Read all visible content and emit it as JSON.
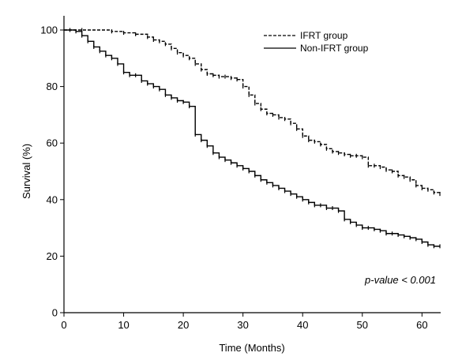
{
  "chart_data": {
    "type": "line",
    "title": "",
    "xlabel": "Time (Months)",
    "ylabel": "Survival (%)",
    "xlim": [
      0,
      63
    ],
    "ylim": [
      0,
      100
    ],
    "x_ticks": [
      0,
      10,
      20,
      30,
      40,
      50,
      60
    ],
    "y_ticks": [
      0,
      20,
      40,
      60,
      80,
      100
    ],
    "grid": false,
    "legend_position": "top-right",
    "annotation": "p-value < 0.001",
    "series": [
      {
        "name": "IFRT group",
        "style": "dashed",
        "color": "#000000",
        "x": [
          0,
          3,
          8,
          10,
          12,
          14,
          15,
          16,
          17,
          18,
          19,
          20,
          21,
          22,
          23,
          24,
          25,
          26,
          27,
          28,
          29,
          30,
          31,
          32,
          33,
          34,
          35,
          36,
          37,
          38,
          39,
          40,
          41,
          42,
          43,
          44,
          45,
          46,
          47,
          48,
          49,
          50,
          51,
          52,
          53,
          54,
          55,
          56,
          57,
          58,
          59,
          60,
          61,
          62,
          63
        ],
        "y": [
          100,
          100,
          99.5,
          99,
          98.5,
          97.5,
          96.5,
          96,
          95,
          93.5,
          92,
          91,
          90,
          88,
          86,
          84.5,
          84,
          83.5,
          83.5,
          83,
          82.5,
          80,
          77,
          74,
          72,
          70.5,
          70,
          69,
          68.5,
          67,
          65,
          62.5,
          61,
          60.5,
          59.5,
          58,
          57,
          56.5,
          56,
          55.5,
          55.5,
          55,
          52,
          52,
          51.5,
          50.5,
          50,
          48.5,
          48,
          47,
          45,
          44,
          43.5,
          42.5,
          42
        ]
      },
      {
        "name": "Non-IFRT group",
        "style": "solid",
        "color": "#000000",
        "x": [
          0,
          1,
          2,
          3,
          4,
          5,
          6,
          7,
          8,
          9,
          10,
          11,
          12,
          13,
          14,
          15,
          16,
          17,
          18,
          19,
          20,
          21,
          22,
          23,
          24,
          25,
          26,
          27,
          28,
          29,
          30,
          31,
          32,
          33,
          34,
          35,
          36,
          37,
          38,
          39,
          40,
          41,
          42,
          43,
          44,
          45,
          46,
          47,
          48,
          49,
          50,
          51,
          52,
          53,
          54,
          55,
          56,
          57,
          58,
          59,
          60,
          61,
          62,
          63
        ],
        "y": [
          100,
          100,
          99.5,
          98,
          96,
          94,
          92.5,
          91,
          90,
          88,
          85,
          84,
          84,
          82,
          81,
          80,
          79,
          77,
          76,
          75,
          74.5,
          73,
          63,
          61,
          59,
          56.5,
          55,
          54,
          53,
          52,
          51,
          50,
          48.5,
          47,
          46,
          45,
          44,
          43,
          42,
          41,
          40,
          39,
          38,
          38,
          37,
          37,
          36,
          33,
          32,
          31,
          30,
          30,
          29.5,
          29,
          28,
          28,
          27.5,
          27,
          26.5,
          26,
          25,
          24,
          23.5,
          23.5
        ]
      }
    ]
  }
}
